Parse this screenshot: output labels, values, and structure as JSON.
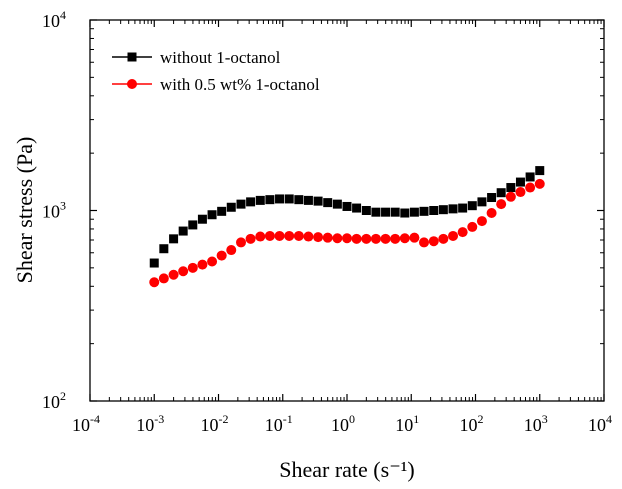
{
  "chart_data": {
    "type": "scatter",
    "xlabel": "Shear rate (s⁻¹)",
    "ylabel": "Shear stress (Pa)",
    "x_scale": "log",
    "y_scale": "log",
    "xlim": [
      0.0001,
      10000
    ],
    "ylim": [
      100,
      10000
    ],
    "grid": false,
    "legend_position": "top-left",
    "x_tick_labels": [
      {
        "value": 0.0001,
        "base": "10",
        "exp": "-4"
      },
      {
        "value": 0.001,
        "base": "10",
        "exp": "-3"
      },
      {
        "value": 0.01,
        "base": "10",
        "exp": "-2"
      },
      {
        "value": 0.1,
        "base": "10",
        "exp": "-1"
      },
      {
        "value": 1,
        "base": "10",
        "exp": "0"
      },
      {
        "value": 10,
        "base": "10",
        "exp": "1"
      },
      {
        "value": 100,
        "base": "10",
        "exp": "2"
      },
      {
        "value": 1000,
        "base": "10",
        "exp": "3"
      },
      {
        "value": 10000,
        "base": "10",
        "exp": "4"
      }
    ],
    "y_tick_labels": [
      {
        "value": 100,
        "base": "10",
        "exp": "2"
      },
      {
        "value": 1000,
        "base": "10",
        "exp": "3"
      },
      {
        "value": 10000,
        "base": "10",
        "exp": "4"
      }
    ],
    "series": [
      {
        "name": "without 1-octanol",
        "color": "#000000",
        "marker": "square",
        "x": [
          0.001,
          0.00141,
          0.002,
          0.00282,
          0.00398,
          0.00562,
          0.00794,
          0.0112,
          0.0158,
          0.0224,
          0.0316,
          0.0447,
          0.0631,
          0.0891,
          0.126,
          0.178,
          0.251,
          0.355,
          0.501,
          0.708,
          1,
          1.41,
          2,
          2.82,
          3.98,
          5.62,
          7.94,
          11.2,
          15.8,
          22.4,
          31.6,
          44.7,
          63.1,
          89.1,
          126,
          178,
          251,
          355,
          501,
          708,
          1000
        ],
        "y": [
          530,
          630,
          710,
          780,
          840,
          900,
          950,
          990,
          1040,
          1080,
          1110,
          1130,
          1140,
          1150,
          1150,
          1140,
          1130,
          1120,
          1100,
          1080,
          1050,
          1030,
          1000,
          980,
          980,
          980,
          970,
          980,
          990,
          1000,
          1010,
          1020,
          1030,
          1060,
          1110,
          1170,
          1240,
          1320,
          1410,
          1500,
          1620
        ]
      },
      {
        "name": "with 0.5 wt% 1-octanol",
        "color": "#ff0000",
        "marker": "circle",
        "x": [
          0.001,
          0.00141,
          0.002,
          0.00282,
          0.00398,
          0.00562,
          0.00794,
          0.0112,
          0.0158,
          0.0224,
          0.0316,
          0.0447,
          0.0631,
          0.0891,
          0.126,
          0.178,
          0.251,
          0.355,
          0.501,
          0.708,
          1,
          1.41,
          2,
          2.82,
          3.98,
          5.62,
          7.94,
          11.2,
          15.8,
          22.4,
          31.6,
          44.7,
          63.1,
          89.1,
          126,
          178,
          251,
          355,
          501,
          708,
          1000
        ],
        "y": [
          420,
          440,
          460,
          480,
          500,
          520,
          540,
          580,
          620,
          680,
          710,
          730,
          735,
          735,
          735,
          735,
          730,
          725,
          720,
          715,
          715,
          710,
          710,
          710,
          710,
          710,
          715,
          720,
          680,
          690,
          710,
          735,
          770,
          820,
          880,
          970,
          1080,
          1180,
          1250,
          1320,
          1380
        ]
      }
    ]
  }
}
